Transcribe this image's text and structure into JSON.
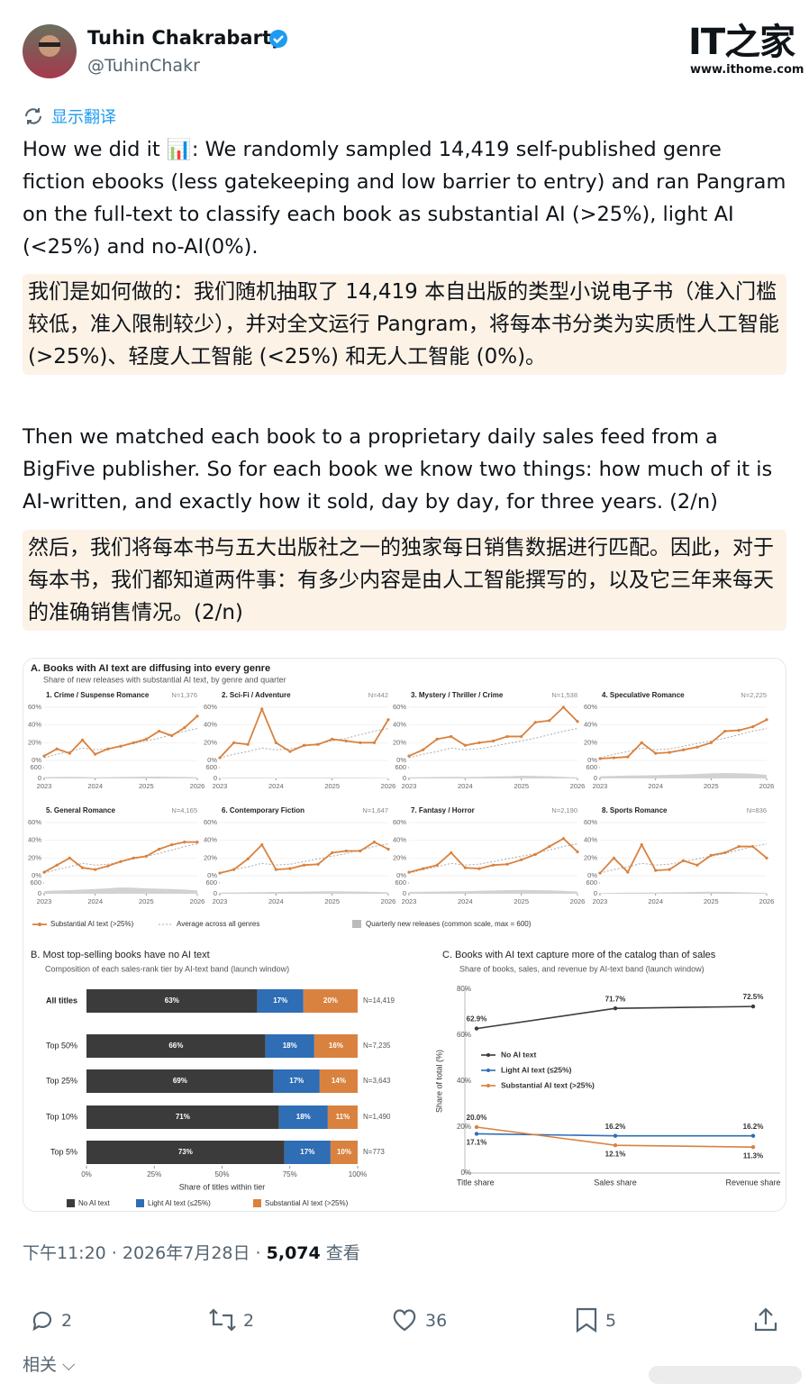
{
  "header": {
    "name": "Tuhin Chakrabarty",
    "handle": "@TuhinChakr",
    "logo": "IT之家",
    "url": "www.ithome.com"
  },
  "translate": "显示翻译",
  "post": {
    "paragraphs": [
      "How we did it 📊: We randomly sampled 14,419 self-published genre fiction ebooks (less gatekeeping and low barrier to entry) and ran Pangram on the full-text to classify each book as substantial AI (>25%), light AI (<25%) and no-AI(0%).",
      "我们是如何做的：我们随机抽取了 14,419 本自出版的类型小说电子书（准入门槛较低，准入限制较少），并对全文运行 Pangram，将每本书分类为实质性人工智能 (>25%)、轻度人工智能 (<25%) 和无人工智能 (0%)。",
      "Then we matched each book to a proprietary daily sales feed from a BigFive publisher. So for each book we know two things: how much of it is AI-written, and exactly how it sold, day by day, for three years. (2/n)",
      "然后，我们将每本书与五大出版社之一的独家每日销售数据进行匹配。因此，对于每本书，我们都知道两件事：有多少内容是由人工智能撰写的，以及它三年来每天的准确销售情况。(2/n)"
    ]
  },
  "panel_a": {
    "type": "line",
    "title": "A. Books with AI text are diffusing into every genre",
    "subtitle": "Share of new releases with substantial AI text, by genre and quarter",
    "x": [
      2023,
      2023.25,
      2023.5,
      2023.75,
      2024,
      2024.25,
      2024.5,
      2024.75,
      2025,
      2025.25,
      2025.5,
      2025.75,
      2026
    ],
    "xlim": [
      2023,
      2026
    ],
    "xticks": [
      2023,
      2024,
      2025,
      2026
    ],
    "ylim": [
      0,
      60
    ],
    "yticks": [
      {
        "value": 0,
        "label": "0%"
      },
      {
        "value": 20,
        "label": "20%"
      },
      {
        "value": 40,
        "label": "40%"
      },
      {
        "value": 60,
        "label": "60%"
      }
    ],
    "release_ylim": [
      0,
      600
    ],
    "release_yticks": [
      0,
      600
    ],
    "series_name": "Substantial AI text (>25%)",
    "color": "#d9823f",
    "average": {
      "name": "Average across all genres",
      "color": "#aaaaaa",
      "values": [
        3,
        7,
        10,
        14,
        12,
        13,
        16,
        19,
        22,
        25,
        29,
        33,
        36
      ]
    },
    "release_name": "Quarterly new releases (common scale, max = 600)",
    "release_color": "#d2d2d2",
    "charts": [
      {
        "title": "1. Crime / Suspense Romance",
        "n_label": "N=1,376",
        "values": [
          5,
          13,
          8,
          23,
          7,
          13,
          16,
          20,
          24,
          33,
          28,
          37,
          50
        ],
        "releases": [
          70,
          80,
          90,
          80,
          60,
          70,
          80,
          90,
          100,
          100,
          90,
          80,
          60
        ]
      },
      {
        "title": "2. Sci-Fi / Adventure",
        "n_label": "N=442",
        "values": [
          3,
          20,
          18,
          58,
          20,
          10,
          17,
          18,
          24,
          22,
          20,
          20,
          46
        ],
        "releases": [
          30,
          40,
          40,
          35,
          30,
          35,
          40,
          40,
          45,
          40,
          35,
          30,
          25
        ]
      },
      {
        "title": "3. Mystery / Thriller / Crime",
        "n_label": "N=1,538",
        "values": [
          5,
          12,
          24,
          27,
          17,
          20,
          22,
          27,
          27,
          43,
          45,
          60,
          44
        ],
        "releases": [
          60,
          70,
          80,
          90,
          80,
          90,
          110,
          120,
          150,
          140,
          120,
          90,
          60
        ]
      },
      {
        "title": "4. Speculative Romance",
        "n_label": "N=2,225",
        "values": [
          2,
          3,
          4,
          20,
          8,
          9,
          12,
          15,
          20,
          33,
          34,
          38,
          46
        ],
        "releases": [
          120,
          140,
          160,
          170,
          180,
          200,
          220,
          250,
          280,
          300,
          290,
          260,
          200
        ]
      },
      {
        "title": "5. General Romance",
        "n_label": "N=4,165",
        "values": [
          4,
          12,
          20,
          9,
          7,
          11,
          16,
          20,
          22,
          30,
          35,
          38,
          38
        ],
        "releases": [
          150,
          180,
          200,
          230,
          260,
          300,
          350,
          330,
          300,
          280,
          260,
          230,
          180
        ]
      },
      {
        "title": "6. Contemporary Fiction",
        "n_label": "N=1,647",
        "values": [
          3,
          7,
          19,
          35,
          7,
          8,
          12,
          13,
          26,
          28,
          28,
          38,
          30
        ],
        "releases": [
          60,
          70,
          80,
          90,
          100,
          110,
          120,
          130,
          140,
          130,
          120,
          100,
          80
        ]
      },
      {
        "title": "7. Fantasy / Horror",
        "n_label": "N=2,190",
        "values": [
          4,
          8,
          12,
          26,
          9,
          8,
          12,
          13,
          18,
          24,
          33,
          42,
          27
        ],
        "releases": [
          100,
          110,
          120,
          130,
          140,
          160,
          180,
          200,
          210,
          200,
          190,
          160,
          120
        ]
      },
      {
        "title": "8. Sports Romance",
        "n_label": "N=836",
        "values": [
          3,
          20,
          4,
          35,
          6,
          7,
          17,
          12,
          23,
          26,
          33,
          33,
          20
        ],
        "releases": [
          40,
          50,
          60,
          60,
          70,
          80,
          90,
          100,
          110,
          100,
          90,
          70,
          50
        ]
      }
    ]
  },
  "panel_b": {
    "type": "bar",
    "orientation": "horizontal",
    "stacked": true,
    "title": "B. Most top-selling books have no AI text",
    "subtitle": "Composition of each sales-rank tier by AI-text band (launch window)",
    "categories": [
      "All titles",
      "Top 50%",
      "Top 25%",
      "Top 10%",
      "Top 5%"
    ],
    "series": [
      {
        "name": "No AI text",
        "color": "#3b3b3b",
        "values": [
          63,
          66,
          69,
          71,
          73
        ],
        "value_labels": [
          "63%",
          "66%",
          "69%",
          "71%",
          "73%"
        ]
      },
      {
        "name": "Light AI text (≤25%)",
        "color": "#2f6db5",
        "values": [
          17,
          18,
          17,
          18,
          17
        ],
        "value_labels": [
          "17%",
          "18%",
          "17%",
          "18%",
          "17%"
        ]
      },
      {
        "name": "Substantial AI text (>25%)",
        "color": "#d9823f",
        "values": [
          20,
          16,
          14,
          11,
          10
        ],
        "value_labels": [
          "20%",
          "16%",
          "14%",
          "11%",
          "10%"
        ]
      }
    ],
    "n_labels": [
      "N=14,419",
      "N=7,235",
      "N=3,643",
      "N=1,490",
      "N=773"
    ],
    "xlim": [
      0,
      100
    ],
    "xticks": [
      {
        "value": 0,
        "label": "0%"
      },
      {
        "value": 25,
        "label": "25%"
      },
      {
        "value": 50,
        "label": "50%"
      },
      {
        "value": 75,
        "label": "75%"
      },
      {
        "value": 100,
        "label": "100%"
      }
    ],
    "xlabel": "Share of titles within tier"
  },
  "panel_c": {
    "type": "line",
    "title": "C. Books with AI text capture more of the catalog than of sales",
    "subtitle": "Share of books, sales, and revenue by AI-text band (launch window)",
    "categories": [
      "Title share",
      "Sales share",
      "Revenue share"
    ],
    "series": [
      {
        "name": "No AI text",
        "color": "#3b3b3b",
        "values": [
          62.9,
          71.7,
          72.5
        ],
        "value_labels": [
          "62.9%",
          "71.7%",
          "72.5%"
        ]
      },
      {
        "name": "Light AI text (≤25%)",
        "color": "#2f6db5",
        "values": [
          17.1,
          16.2,
          16.2
        ],
        "value_labels": [
          "17.1%",
          "16.2%",
          "16.2%"
        ]
      },
      {
        "name": "Substantial AI text (>25%)",
        "color": "#d9823f",
        "values": [
          20.0,
          12.1,
          11.3
        ],
        "value_labels": [
          "20.0%",
          "12.1%",
          "11.3%"
        ]
      }
    ],
    "ylim": [
      0,
      80
    ],
    "yticks": [
      {
        "value": 0,
        "label": "0%"
      },
      {
        "value": 20,
        "label": "20%"
      },
      {
        "value": 40,
        "label": "40%"
      },
      {
        "value": 60,
        "label": "60%"
      },
      {
        "value": 80,
        "label": "80%"
      }
    ],
    "ylabel": "Share of total (%)"
  },
  "meta": {
    "time": "下午11:20 · 2026年7月28日 ·",
    "views": "5,074",
    "views_label": "查看"
  },
  "actions": {
    "replies": 2,
    "retweets": 2,
    "likes": 36,
    "bookmarks": 5
  },
  "related": "相关"
}
